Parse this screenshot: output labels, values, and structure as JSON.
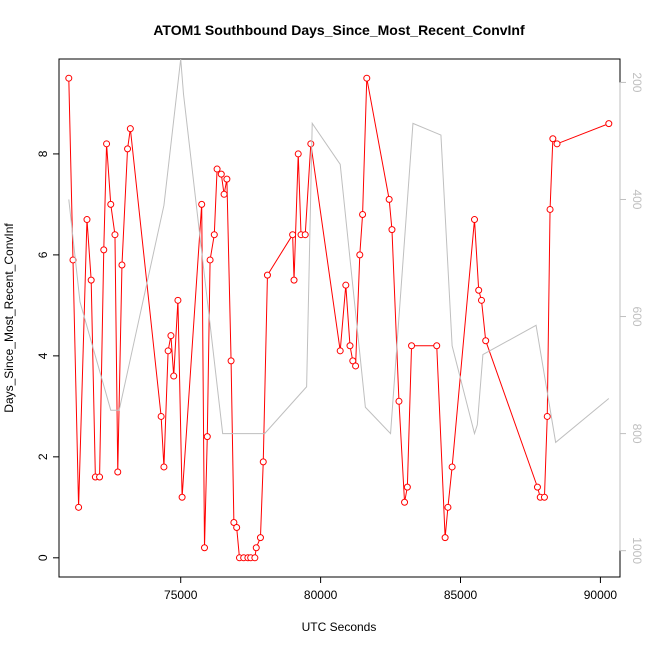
{
  "chart_data": {
    "type": "line",
    "title": "ATOM1 Southbound Days_Since_Most_Recent_ConvInf",
    "xlabel": "UTC Seconds",
    "ylabel": "Days_Since_Most_Recent_ConvInf",
    "xlim": [
      70650,
      90700
    ],
    "ylim": [
      -0.38,
      9.88
    ],
    "x_ticks": [
      75000,
      80000,
      85000,
      90000
    ],
    "y_ticks": [
      0,
      2,
      4,
      6,
      8
    ],
    "right_axis": {
      "reversed": true,
      "ylim": [
        1045,
        160
      ],
      "ticks": [
        200,
        400,
        600,
        800,
        1000
      ],
      "color": "#bfbfbf"
    },
    "grid": false,
    "legend": "none",
    "series": [
      {
        "color": "#ff0000",
        "marker": "open-circle",
        "points": [
          [
            71000,
            9.5
          ],
          [
            71150,
            5.9
          ],
          [
            71350,
            1.0
          ],
          [
            71650,
            6.7
          ],
          [
            71800,
            5.5
          ],
          [
            71950,
            1.6
          ],
          [
            72100,
            1.6
          ],
          [
            72250,
            6.1
          ],
          [
            72350,
            8.2
          ],
          [
            72500,
            7.0
          ],
          [
            72650,
            6.4
          ],
          [
            72750,
            1.7
          ],
          [
            72900,
            5.8
          ],
          [
            73100,
            8.1
          ],
          [
            73200,
            8.5
          ],
          [
            74300,
            2.8
          ],
          [
            74400,
            1.8
          ],
          [
            74550,
            4.1
          ],
          [
            74650,
            4.4
          ],
          [
            74750,
            3.6
          ],
          [
            74900,
            5.1
          ],
          [
            75050,
            1.2
          ],
          [
            75750,
            7.0
          ],
          [
            75850,
            0.2
          ],
          [
            75950,
            2.4
          ],
          [
            76050,
            5.9
          ],
          [
            76200,
            6.4
          ],
          [
            76300,
            7.7
          ],
          [
            76450,
            7.6
          ],
          [
            76550,
            7.2
          ],
          [
            76650,
            7.5
          ],
          [
            76800,
            3.9
          ],
          [
            76900,
            0.7
          ],
          [
            77000,
            0.6
          ],
          [
            77100,
            0.0
          ],
          [
            77250,
            0.0
          ],
          [
            77400,
            0.0
          ],
          [
            77500,
            0.0
          ],
          [
            77650,
            0.0
          ],
          [
            77700,
            0.2
          ],
          [
            77850,
            0.4
          ],
          [
            77950,
            1.9
          ],
          [
            78100,
            5.6
          ],
          [
            79000,
            6.4
          ],
          [
            79050,
            5.5
          ],
          [
            79200,
            8.0
          ],
          [
            79300,
            6.4
          ],
          [
            79450,
            6.4
          ],
          [
            79650,
            8.2
          ],
          [
            80700,
            4.1
          ],
          [
            80900,
            5.4
          ],
          [
            81050,
            4.2
          ],
          [
            81150,
            3.9
          ],
          [
            81250,
            3.8
          ],
          [
            81400,
            6.0
          ],
          [
            81500,
            6.8
          ],
          [
            81650,
            9.5
          ],
          [
            82450,
            7.1
          ],
          [
            82550,
            6.5
          ],
          [
            82800,
            3.1
          ],
          [
            83000,
            1.1
          ],
          [
            83100,
            1.4
          ],
          [
            83250,
            4.2
          ],
          [
            84150,
            4.2
          ],
          [
            84450,
            0.4
          ],
          [
            84550,
            1.0
          ],
          [
            84700,
            1.8
          ],
          [
            85500,
            6.7
          ],
          [
            85650,
            5.3
          ],
          [
            85750,
            5.1
          ],
          [
            85900,
            4.3
          ],
          [
            87750,
            1.4
          ],
          [
            87850,
            1.2
          ],
          [
            88000,
            1.2
          ],
          [
            88100,
            2.8
          ],
          [
            88200,
            6.9
          ],
          [
            88300,
            8.3
          ],
          [
            88450,
            8.2
          ],
          [
            90300,
            8.6
          ]
        ]
      },
      {
        "color": "#bfbfbf",
        "marker": "none",
        "axis": "right",
        "points": [
          [
            71000,
            400
          ],
          [
            71400,
            575
          ],
          [
            72500,
            760
          ],
          [
            72800,
            760
          ],
          [
            74400,
            410
          ],
          [
            75000,
            160
          ],
          [
            75100,
            220
          ],
          [
            76500,
            800
          ],
          [
            78000,
            800
          ],
          [
            79500,
            720
          ],
          [
            79700,
            270
          ],
          [
            80700,
            340
          ],
          [
            81600,
            755
          ],
          [
            82500,
            800
          ],
          [
            83300,
            270
          ],
          [
            84300,
            290
          ],
          [
            84700,
            650
          ],
          [
            85500,
            800
          ],
          [
            85600,
            785
          ],
          [
            85800,
            665
          ],
          [
            87700,
            615
          ],
          [
            88400,
            815
          ],
          [
            90300,
            740
          ]
        ]
      }
    ]
  }
}
